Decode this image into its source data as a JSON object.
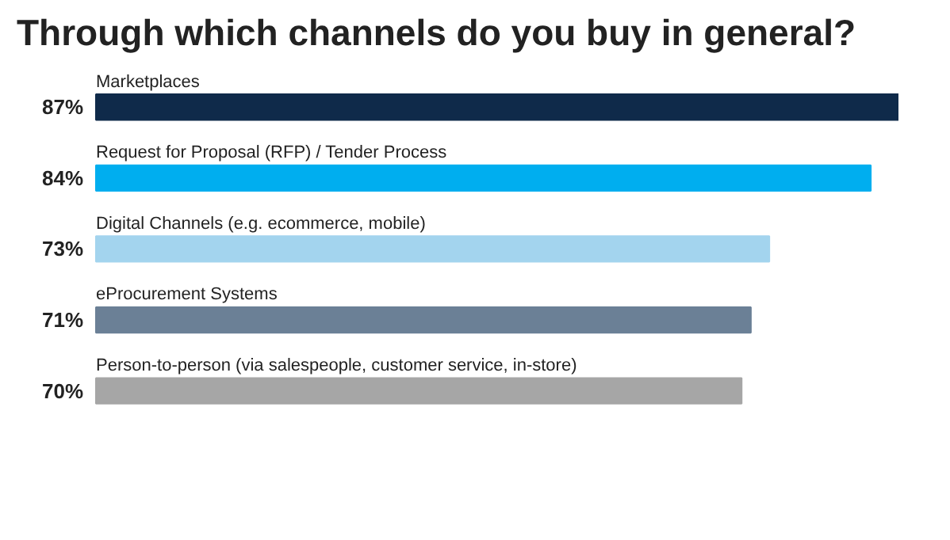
{
  "chart_data": {
    "type": "bar",
    "orientation": "horizontal",
    "title": "Through which channels do you buy in general?",
    "categories": [
      "Marketplaces",
      "Request for Proposal (RFP) / Tender Process",
      "Digital Channels (e.g. ecommerce, mobile)",
      "eProcurement Systems",
      "Person-to-person (via salespeople, customer service, in-store)"
    ],
    "values": [
      87,
      84,
      73,
      71,
      70
    ],
    "colors": [
      "#0f2a4a",
      "#00aeef",
      "#a3d4ee",
      "#6b8096",
      "#a6a6a6"
    ],
    "value_labels": [
      "87%",
      "84%",
      "73%",
      "71%",
      "70%"
    ],
    "grid": false
  }
}
